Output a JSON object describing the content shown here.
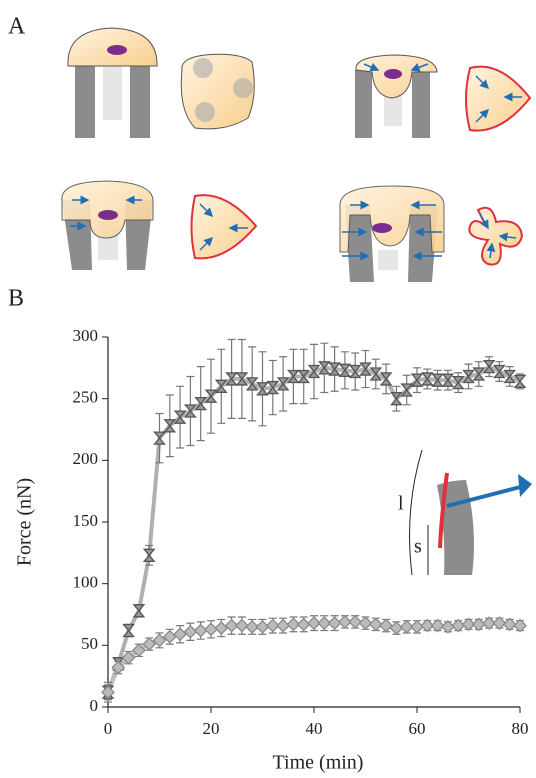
{
  "panel_labels": [
    "A",
    "B"
  ],
  "chart_data": {
    "type": "line",
    "xlabel": "Time (min)",
    "ylabel": "Force (nN)",
    "annotations": [
      "l",
      "s"
    ],
    "x": [
      0,
      2,
      4,
      6,
      8,
      10,
      12,
      14,
      16,
      18,
      20,
      22,
      24,
      26,
      28,
      30,
      32,
      34,
      36,
      38,
      40,
      42,
      44,
      46,
      48,
      50,
      52,
      54,
      56,
      58,
      60,
      62,
      64,
      66,
      68,
      70,
      72,
      74,
      76,
      78,
      80
    ],
    "series": [
      {
        "color": "#555555",
        "line_color": "#b0b0b0",
        "values": [
          12,
          35,
          62,
          78,
          123,
          218,
          228,
          235,
          240,
          246,
          252,
          260,
          266,
          266,
          262,
          258,
          259,
          262,
          268,
          268,
          272,
          275,
          274,
          273,
          272,
          274,
          270,
          266,
          250,
          257,
          265,
          266,
          265,
          265,
          263,
          268,
          270,
          276,
          272,
          268,
          264
        ],
        "errors": [
          8,
          5,
          5,
          5,
          8,
          20,
          25,
          25,
          28,
          30,
          30,
          30,
          32,
          32,
          30,
          30,
          22,
          22,
          22,
          22,
          22,
          20,
          18,
          15,
          15,
          15,
          12,
          12,
          10,
          12,
          10,
          8,
          8,
          8,
          8,
          10,
          10,
          8,
          8,
          8,
          6
        ]
      },
      {
        "color": "#8a8a8a",
        "line_color": "#c0c0c0",
        "values": [
          12,
          32,
          40,
          46,
          51,
          54,
          57,
          59,
          61,
          62,
          63,
          64,
          66,
          66,
          65,
          65,
          66,
          66,
          67,
          67,
          68,
          68,
          68,
          69,
          69,
          68,
          67,
          66,
          64,
          65,
          65,
          66,
          66,
          65,
          66,
          67,
          67,
          68,
          68,
          67,
          66
        ],
        "errors": [
          6,
          5,
          5,
          5,
          5,
          6,
          6,
          7,
          7,
          7,
          7,
          7,
          7,
          7,
          6,
          6,
          6,
          6,
          6,
          6,
          6,
          6,
          6,
          5,
          5,
          5,
          5,
          5,
          5,
          5,
          5,
          4,
          4,
          4,
          4,
          4,
          4,
          4,
          4,
          4,
          4
        ]
      }
    ],
    "xlim": [
      0,
      80
    ],
    "ylim": [
      0,
      300
    ],
    "xticks": [
      0,
      20,
      40,
      60,
      80
    ],
    "yticks": [
      0,
      50,
      100,
      150,
      200,
      250,
      300
    ]
  }
}
